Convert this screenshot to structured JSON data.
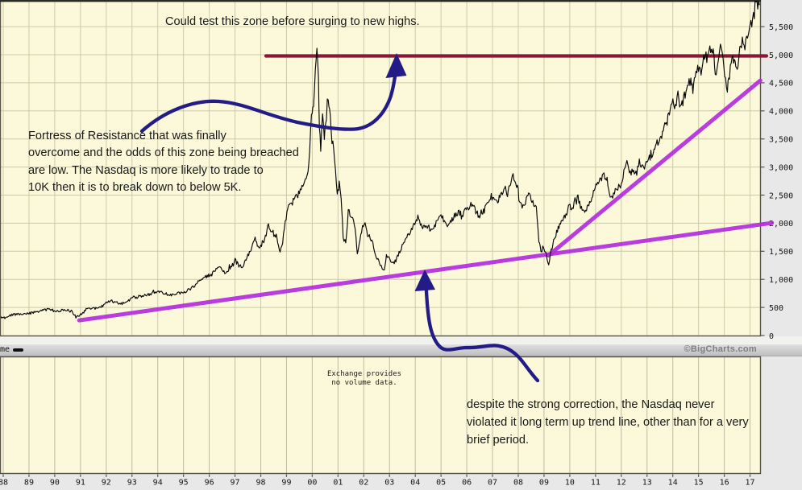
{
  "annotations": {
    "top_note": "Could test this zone before surging to new highs.",
    "fortress_note": "Fortress of Resistance that was finally\novercome and the odds of this zone being breached\nare low. The Nasdaq is more likely to trade to\n10K then it is to break down to below 5K.",
    "trend_note": "despite the strong correction, the Nasdaq never\nviolated it long term up trend line, other than for a very\nbrief period.",
    "no_volume_note": "Exchange provides\nno volume data."
  },
  "volume_bar": {
    "label_fragment": "me",
    "copyright": "©BigCharts.com"
  },
  "colors": {
    "background": "#fbf9da",
    "grid_main": "#cbcaa8",
    "grid_volume": "#bdbca2",
    "border": "#55524a",
    "tick": "#555550",
    "price": "#060606",
    "resistance": "#8c1638",
    "trend": "#b42ce0",
    "arrow": "#231b86",
    "axis_text": "#141414"
  },
  "chart_data": {
    "type": "line",
    "title": "",
    "xlabel": "",
    "ylabel": "",
    "x_tick_labels": [
      "88",
      "89",
      "90",
      "91",
      "92",
      "93",
      "94",
      "95",
      "96",
      "97",
      "98",
      "99",
      "00",
      "01",
      "02",
      "03",
      "04",
      "05",
      "06",
      "07",
      "08",
      "09",
      "10",
      "11",
      "12",
      "13",
      "14",
      "15",
      "16",
      "17"
    ],
    "y_tick_values": [
      0,
      500,
      1000,
      1500,
      2000,
      2500,
      3000,
      3500,
      4000,
      4500,
      5000,
      5500
    ],
    "y_tick_labels": [
      "0",
      "500",
      "1,000",
      "1,500",
      "2,000",
      "2,500",
      "3,000",
      "3,500",
      "4,000",
      "4,500",
      "5,000",
      "5,500"
    ],
    "ylim": [
      0,
      5980
    ],
    "xlim_years": [
      1987.88,
      2017.45
    ],
    "grid": true,
    "legend": "none",
    "resistance_line": {
      "level": 5000,
      "from_year": 1998.2,
      "to_year": 2017.65
    },
    "trend_lines": [
      {
        "name": "long-term up trend line",
        "from": [
          1990.95,
          270
        ],
        "to": [
          2017.85,
          2005
        ]
      },
      {
        "name": "post-2009 up trend line",
        "from": [
          2009.17,
          1425
        ],
        "to": [
          2017.4,
          4540
        ]
      }
    ],
    "series": [
      {
        "name": "Nasdaq Composite",
        "points": [
          [
            1987.88,
            320
          ],
          [
            1988.0,
            330
          ],
          [
            1988.2,
            350
          ],
          [
            1988.4,
            375
          ],
          [
            1988.6,
            382
          ],
          [
            1988.8,
            372
          ],
          [
            1989.0,
            392
          ],
          [
            1989.3,
            425
          ],
          [
            1989.6,
            452
          ],
          [
            1989.8,
            472
          ],
          [
            1989.95,
            452
          ],
          [
            1990.1,
            432
          ],
          [
            1990.3,
            450
          ],
          [
            1990.55,
            462
          ],
          [
            1990.7,
            412
          ],
          [
            1990.82,
            330
          ],
          [
            1990.95,
            362
          ],
          [
            1991.1,
            402
          ],
          [
            1991.25,
            482
          ],
          [
            1991.5,
            478
          ],
          [
            1991.7,
            492
          ],
          [
            1991.9,
            532
          ],
          [
            1992.0,
            592
          ],
          [
            1992.15,
            632
          ],
          [
            1992.35,
            588
          ],
          [
            1992.55,
            562
          ],
          [
            1992.75,
            582
          ],
          [
            1992.9,
            622
          ],
          [
            1993.0,
            682
          ],
          [
            1993.2,
            668
          ],
          [
            1993.4,
            702
          ],
          [
            1993.6,
            722
          ],
          [
            1993.8,
            752
          ],
          [
            1994.0,
            782
          ],
          [
            1994.15,
            792
          ],
          [
            1994.3,
            732
          ],
          [
            1994.5,
            722
          ],
          [
            1994.7,
            752
          ],
          [
            1994.9,
            752
          ],
          [
            1995.0,
            762
          ],
          [
            1995.2,
            812
          ],
          [
            1995.4,
            872
          ],
          [
            1995.6,
            962
          ],
          [
            1995.8,
            1042
          ],
          [
            1995.95,
            1062
          ],
          [
            1996.1,
            1092
          ],
          [
            1996.3,
            1182
          ],
          [
            1996.45,
            1212
          ],
          [
            1996.6,
            1102
          ],
          [
            1996.75,
            1182
          ],
          [
            1996.9,
            1272
          ],
          [
            1997.0,
            1342
          ],
          [
            1997.15,
            1252
          ],
          [
            1997.3,
            1222
          ],
          [
            1997.5,
            1422
          ],
          [
            1997.65,
            1572
          ],
          [
            1997.78,
            1722
          ],
          [
            1997.9,
            1552
          ],
          [
            1998.0,
            1592
          ],
          [
            1998.15,
            1762
          ],
          [
            1998.3,
            1902
          ],
          [
            1998.45,
            1852
          ],
          [
            1998.6,
            1782
          ],
          [
            1998.75,
            1502
          ],
          [
            1998.85,
            1602
          ],
          [
            1998.95,
            2002
          ],
          [
            1999.05,
            2302
          ],
          [
            1999.2,
            2342
          ],
          [
            1999.35,
            2502
          ],
          [
            1999.5,
            2552
          ],
          [
            1999.6,
            2702
          ],
          [
            1999.7,
            2752
          ],
          [
            1999.8,
            2902
          ],
          [
            1999.9,
            3302
          ],
          [
            1999.97,
            3902
          ],
          [
            2000.05,
            4102
          ],
          [
            2000.12,
            4702
          ],
          [
            2000.18,
            5132
          ],
          [
            2000.24,
            4502
          ],
          [
            2000.28,
            3652
          ],
          [
            2000.33,
            3352
          ],
          [
            2000.4,
            3902
          ],
          [
            2000.47,
            3502
          ],
          [
            2000.55,
            4002
          ],
          [
            2000.62,
            4252
          ],
          [
            2000.7,
            3852
          ],
          [
            2000.8,
            3402
          ],
          [
            2000.9,
            3002
          ],
          [
            2000.97,
            2502
          ],
          [
            2001.05,
            2702
          ],
          [
            2001.12,
            2402
          ],
          [
            2001.2,
            1752
          ],
          [
            2001.3,
            1652
          ],
          [
            2001.4,
            2202
          ],
          [
            2001.5,
            2152
          ],
          [
            2001.6,
            2052
          ],
          [
            2001.7,
            1752
          ],
          [
            2001.75,
            1452
          ],
          [
            2001.85,
            1702
          ],
          [
            2001.95,
            1952
          ],
          [
            2002.05,
            2002
          ],
          [
            2002.15,
            1802
          ],
          [
            2002.25,
            1732
          ],
          [
            2002.35,
            1622
          ],
          [
            2002.45,
            1452
          ],
          [
            2002.55,
            1352
          ],
          [
            2002.65,
            1252
          ],
          [
            2002.75,
            1182
          ],
          [
            2002.8,
            1152
          ],
          [
            2002.88,
            1382
          ],
          [
            2002.95,
            1432
          ],
          [
            2003.05,
            1342
          ],
          [
            2003.15,
            1282
          ],
          [
            2003.25,
            1332
          ],
          [
            2003.4,
            1502
          ],
          [
            2003.55,
            1652
          ],
          [
            2003.7,
            1782
          ],
          [
            2003.85,
            1882
          ],
          [
            2003.95,
            1972
          ],
          [
            2004.1,
            2062
          ],
          [
            2004.2,
            1992
          ],
          [
            2004.35,
            1922
          ],
          [
            2004.5,
            1962
          ],
          [
            2004.62,
            1852
          ],
          [
            2004.75,
            1952
          ],
          [
            2004.9,
            2102
          ],
          [
            2005.0,
            2152
          ],
          [
            2005.1,
            2062
          ],
          [
            2005.25,
            1952
          ],
          [
            2005.4,
            2052
          ],
          [
            2005.55,
            2152
          ],
          [
            2005.7,
            2202
          ],
          [
            2005.82,
            2102
          ],
          [
            2005.95,
            2232
          ],
          [
            2006.1,
            2302
          ],
          [
            2006.25,
            2342
          ],
          [
            2006.35,
            2202
          ],
          [
            2006.5,
            2122
          ],
          [
            2006.65,
            2202
          ],
          [
            2006.8,
            2332
          ],
          [
            2006.95,
            2422
          ],
          [
            2007.1,
            2452
          ],
          [
            2007.2,
            2392
          ],
          [
            2007.35,
            2522
          ],
          [
            2007.5,
            2602
          ],
          [
            2007.58,
            2502
          ],
          [
            2007.7,
            2702
          ],
          [
            2007.8,
            2862
          ],
          [
            2007.9,
            2652
          ],
          [
            2007.97,
            2682
          ],
          [
            2008.05,
            2352
          ],
          [
            2008.15,
            2282
          ],
          [
            2008.25,
            2352
          ],
          [
            2008.4,
            2552
          ],
          [
            2008.5,
            2452
          ],
          [
            2008.6,
            2302
          ],
          [
            2008.7,
            2252
          ],
          [
            2008.8,
            1702
          ],
          [
            2008.88,
            1502
          ],
          [
            2008.95,
            1552
          ],
          [
            2009.02,
            1482
          ],
          [
            2009.1,
            1432
          ],
          [
            2009.18,
            1272
          ],
          [
            2009.28,
            1502
          ],
          [
            2009.4,
            1722
          ],
          [
            2009.55,
            1902
          ],
          [
            2009.7,
            2052
          ],
          [
            2009.85,
            2152
          ],
          [
            2009.95,
            2272
          ],
          [
            2010.1,
            2302
          ],
          [
            2010.2,
            2402
          ],
          [
            2010.32,
            2462
          ],
          [
            2010.45,
            2252
          ],
          [
            2010.55,
            2152
          ],
          [
            2010.65,
            2252
          ],
          [
            2010.8,
            2402
          ],
          [
            2010.95,
            2602
          ],
          [
            2011.05,
            2702
          ],
          [
            2011.2,
            2782
          ],
          [
            2011.33,
            2852
          ],
          [
            2011.45,
            2772
          ],
          [
            2011.6,
            2452
          ],
          [
            2011.7,
            2502
          ],
          [
            2011.8,
            2602
          ],
          [
            2011.9,
            2652
          ],
          [
            2012.0,
            2702
          ],
          [
            2012.1,
            2902
          ],
          [
            2012.25,
            3112
          ],
          [
            2012.35,
            2882
          ],
          [
            2012.45,
            2952
          ],
          [
            2012.6,
            2932
          ],
          [
            2012.7,
            3092
          ],
          [
            2012.8,
            3002
          ],
          [
            2012.9,
            2972
          ],
          [
            2013.0,
            3122
          ],
          [
            2013.15,
            3202
          ],
          [
            2013.3,
            3302
          ],
          [
            2013.45,
            3442
          ],
          [
            2013.6,
            3602
          ],
          [
            2013.75,
            3782
          ],
          [
            2013.9,
            4002
          ],
          [
            2013.97,
            4142
          ],
          [
            2014.1,
            4102
          ],
          [
            2014.2,
            4302
          ],
          [
            2014.3,
            4052
          ],
          [
            2014.45,
            4252
          ],
          [
            2014.6,
            4452
          ],
          [
            2014.7,
            4582
          ],
          [
            2014.78,
            4302
          ],
          [
            2014.9,
            4702
          ],
          [
            2015.0,
            4752
          ],
          [
            2015.1,
            4652
          ],
          [
            2015.2,
            4952
          ],
          [
            2015.35,
            5052
          ],
          [
            2015.5,
            5152
          ],
          [
            2015.6,
            4952
          ],
          [
            2015.65,
            4552
          ],
          [
            2015.75,
            4902
          ],
          [
            2015.85,
            5102
          ],
          [
            2015.95,
            4952
          ],
          [
            2016.05,
            4552
          ],
          [
            2016.12,
            4302
          ],
          [
            2016.2,
            4652
          ],
          [
            2016.3,
            4902
          ],
          [
            2016.42,
            4852
          ],
          [
            2016.5,
            4652
          ],
          [
            2016.6,
            5052
          ],
          [
            2016.7,
            5252
          ],
          [
            2016.8,
            5202
          ],
          [
            2016.9,
            5332
          ],
          [
            2017.0,
            5452
          ],
          [
            2017.1,
            5652
          ],
          [
            2017.2,
            5802
          ],
          [
            2017.3,
            5912
          ],
          [
            2017.36,
            5882
          ]
        ]
      }
    ]
  }
}
